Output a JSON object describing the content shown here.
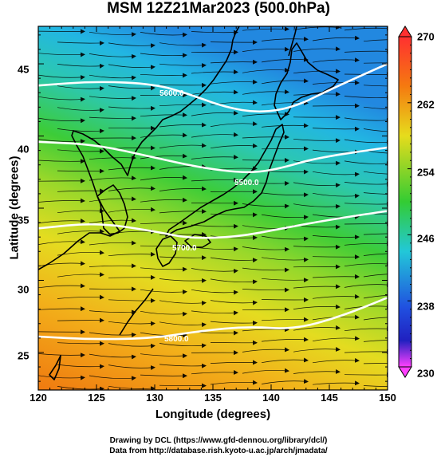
{
  "title": "MSM 12Z21Mar2023 (500.0hPa)",
  "xlabel": "Longitude (degrees)",
  "ylabel": "Latitude (degrees)",
  "credit_line1": "Drawing by DCL (https://www.gfd-dennou.org/library/dcl/)",
  "credit_line2": "Data from http://database.rish.kyoto-u.ac.jp/arch/jmadata/",
  "x_ticks": [
    "120",
    "125",
    "130",
    "135",
    "140",
    "145",
    "150"
  ],
  "y_ticks": [
    "45",
    "40",
    "35",
    "30",
    "25"
  ],
  "colorbar_ticks": [
    "270",
    "262",
    "254",
    "246",
    "238",
    "230"
  ],
  "contour_labels": [
    "5600.0",
    "5500.0",
    "5700.0",
    "5800.0"
  ],
  "colors": {
    "warm": "#f07a10",
    "yellow": "#e6dc1c",
    "green": "#33cc33",
    "cyan": "#22c8d8",
    "blue": "#2080e0",
    "magenta": "#ff40ff",
    "red": "#ff3030",
    "contour": "#ffffff",
    "coast": "#000000"
  },
  "chart_data": {
    "type": "heatmap",
    "title": "MSM 12Z21Mar2023 (500.0hPa)",
    "xlabel": "Longitude (degrees)",
    "ylabel": "Latitude (degrees)",
    "xlim": [
      120,
      150
    ],
    "ylim": [
      22.4,
      47.6
    ],
    "colorbar_range": [
      230,
      270
    ],
    "colorbar_ticks": [
      270,
      262,
      254,
      246,
      238,
      230
    ],
    "height_contours": [
      {
        "label": "5600.0",
        "level": 5600,
        "points": [
          [
            120,
            43.5
          ],
          [
            125,
            43.8
          ],
          [
            130,
            43.6
          ],
          [
            133,
            42.9
          ],
          [
            136,
            42.0
          ],
          [
            139,
            41.6
          ],
          [
            142,
            42.0
          ],
          [
            145,
            43.2
          ],
          [
            150,
            45.0
          ]
        ]
      },
      {
        "label": "5500.0",
        "level": 5500,
        "points": [
          [
            120,
            39.6
          ],
          [
            125,
            39.4
          ],
          [
            130,
            38.5
          ],
          [
            134,
            37.8
          ],
          [
            137,
            37.5
          ],
          [
            139,
            37.5
          ],
          [
            141,
            37.8
          ],
          [
            144,
            38.5
          ],
          [
            150,
            39.2
          ]
        ]
      },
      {
        "label": "5700.0",
        "level": 5700,
        "points": [
          [
            120,
            33.6
          ],
          [
            125,
            34.0
          ],
          [
            130,
            33.4
          ],
          [
            133,
            32.9
          ],
          [
            137,
            33.0
          ],
          [
            141,
            33.6
          ],
          [
            145,
            34.2
          ],
          [
            150,
            34.8
          ]
        ]
      },
      {
        "label": "5800.0",
        "level": 5800,
        "points": [
          [
            120,
            26.1
          ],
          [
            125,
            25.9
          ],
          [
            130,
            26.0
          ],
          [
            134,
            26.5
          ],
          [
            138,
            26.8
          ],
          [
            142,
            26.6
          ],
          [
            146,
            27.5
          ],
          [
            150,
            28.8
          ]
        ]
      }
    ],
    "temperature_field": {
      "unit": "K",
      "range": [
        242,
        266
      ]
    },
    "wind_vectors": "dense streamlines with arrowheads, mostly westerly/eastward"
  }
}
